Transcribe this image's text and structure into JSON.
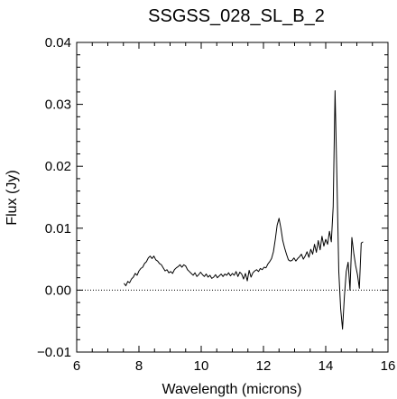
{
  "chart_data": {
    "type": "line",
    "title": "SSGSS_028_SL_B_2",
    "xlabel": "Wavelength (microns)",
    "ylabel": "Flux (Jy)",
    "xlim": [
      6,
      16
    ],
    "ylim": [
      -0.01,
      0.04
    ],
    "x_ticks": [
      "6",
      "8",
      "10",
      "12",
      "14",
      "16"
    ],
    "y_ticks": [
      "−0.01",
      "0.00",
      "0.01",
      "0.02",
      "0.03",
      "0.04"
    ],
    "x_tick_values": [
      6,
      8,
      10,
      12,
      14,
      16
    ],
    "y_tick_values": [
      -0.01,
      0,
      0.01,
      0.02,
      0.03,
      0.04
    ],
    "grid": false,
    "reference_line": {
      "y": 0,
      "style": "dotted"
    },
    "series": [
      {
        "x": [
          7.52,
          7.58,
          7.64,
          7.7,
          7.76,
          7.82,
          7.88,
          7.94,
          8.0,
          8.06,
          8.12,
          8.18,
          8.24,
          8.3,
          8.36,
          8.42,
          8.48,
          8.54,
          8.6,
          8.66,
          8.72,
          8.78,
          8.84,
          8.9,
          8.96,
          9.02,
          9.08,
          9.14,
          9.2,
          9.26,
          9.32,
          9.38,
          9.44,
          9.5,
          9.56,
          9.62,
          9.68,
          9.74,
          9.8,
          9.86,
          9.92,
          9.98,
          10.04,
          10.1,
          10.16,
          10.22,
          10.28,
          10.34,
          10.4,
          10.46,
          10.52,
          10.58,
          10.64,
          10.7,
          10.76,
          10.82,
          10.88,
          10.94,
          11.0,
          11.06,
          11.12,
          11.18,
          11.24,
          11.3,
          11.36,
          11.42,
          11.48,
          11.54,
          11.6,
          11.66,
          11.72,
          11.78,
          11.84,
          11.9,
          11.96,
          12.02,
          12.08,
          12.14,
          12.2,
          12.26,
          12.32,
          12.38,
          12.44,
          12.5,
          12.56,
          12.62,
          12.68,
          12.74,
          12.8,
          12.86,
          12.92,
          12.98,
          13.04,
          13.1,
          13.16,
          13.22,
          13.28,
          13.34,
          13.4,
          13.46,
          13.52,
          13.58,
          13.64,
          13.7,
          13.76,
          13.82,
          13.88,
          13.94,
          14.0,
          14.06,
          14.12,
          14.18,
          14.24,
          14.3,
          14.36,
          14.42,
          14.48,
          14.54,
          14.6,
          14.66,
          14.72,
          14.78,
          14.84,
          14.9,
          14.96,
          15.02,
          15.08,
          15.14,
          15.2
        ],
        "y": [
          0.0011,
          0.0007,
          0.0014,
          0.0012,
          0.0018,
          0.0021,
          0.0027,
          0.0024,
          0.0031,
          0.0035,
          0.0037,
          0.0043,
          0.0046,
          0.0052,
          0.0055,
          0.0051,
          0.0055,
          0.0049,
          0.0047,
          0.0043,
          0.0041,
          0.0036,
          0.0031,
          0.0033,
          0.0028,
          0.003,
          0.0027,
          0.0033,
          0.0036,
          0.0038,
          0.0041,
          0.0037,
          0.0041,
          0.0039,
          0.0033,
          0.003,
          0.0027,
          0.0024,
          0.0028,
          0.0022,
          0.0025,
          0.0029,
          0.0025,
          0.0022,
          0.0026,
          0.0021,
          0.0024,
          0.0019,
          0.0021,
          0.0025,
          0.002,
          0.0023,
          0.0026,
          0.0022,
          0.0026,
          0.0024,
          0.0028,
          0.0023,
          0.0027,
          0.0024,
          0.003,
          0.0022,
          0.0029,
          0.0026,
          0.0018,
          0.0027,
          0.0015,
          0.0032,
          0.0021,
          0.0028,
          0.0031,
          0.0033,
          0.003,
          0.0035,
          0.0033,
          0.0037,
          0.0036,
          0.0042,
          0.0046,
          0.0051,
          0.0062,
          0.0082,
          0.0105,
          0.0116,
          0.01,
          0.008,
          0.0068,
          0.0058,
          0.0049,
          0.0047,
          0.0048,
          0.0052,
          0.0047,
          0.0051,
          0.0054,
          0.0058,
          0.005,
          0.0055,
          0.0062,
          0.0053,
          0.0066,
          0.0058,
          0.0074,
          0.0061,
          0.008,
          0.0065,
          0.0087,
          0.0071,
          0.0082,
          0.0074,
          0.0095,
          0.0078,
          0.0135,
          0.0322,
          0.018,
          0.003,
          -0.003,
          -0.0063,
          -0.001,
          0.003,
          0.0045,
          0.0,
          0.0085,
          0.006,
          0.004,
          0.0025,
          0.0003,
          0.0076,
          0.0078
        ],
        "color": "#000000"
      }
    ]
  }
}
